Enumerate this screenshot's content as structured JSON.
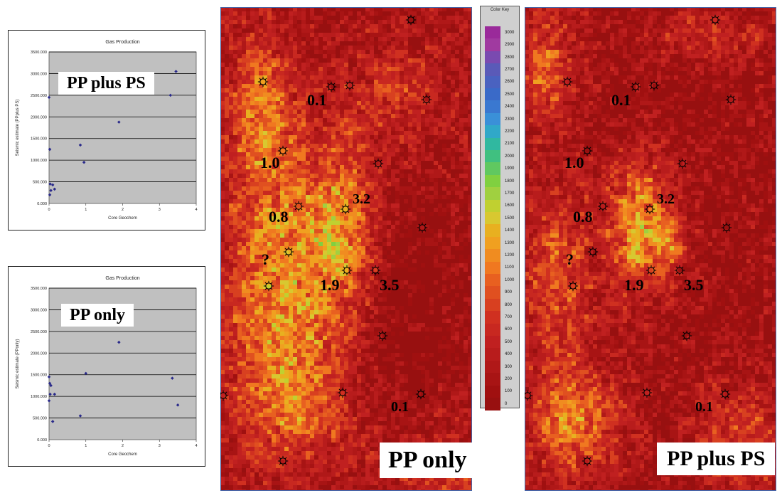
{
  "chart_data": [
    {
      "type": "scatter",
      "title": "Gas Production",
      "label": "PP plus PS",
      "xlabel": "Core Geochem",
      "ylabel": "Seismic estimate (PPplus PS)",
      "xlim": [
        0,
        4
      ],
      "ylim": [
        0,
        3500000
      ],
      "x_ticks": [
        "0",
        "1",
        "2",
        "3",
        "4"
      ],
      "y_ticks": [
        "0.000",
        "500.000",
        "1000.000",
        "1500.000",
        "2000.000",
        "2500.000",
        "3000.000",
        "3500.000"
      ],
      "grid": true,
      "points": [
        {
          "x": 0.0,
          "y": 2450000
        },
        {
          "x": 0.02,
          "y": 1250000
        },
        {
          "x": 0.03,
          "y": 450000
        },
        {
          "x": 0.05,
          "y": 300000
        },
        {
          "x": 0.02,
          "y": 200000
        },
        {
          "x": 0.1,
          "y": 430000
        },
        {
          "x": 0.15,
          "y": 330000
        },
        {
          "x": 0.85,
          "y": 1350000
        },
        {
          "x": 0.95,
          "y": 950000
        },
        {
          "x": 1.9,
          "y": 1880000
        },
        {
          "x": 3.3,
          "y": 2500000
        },
        {
          "x": 3.45,
          "y": 3050000
        }
      ],
      "point_color": "#2a2a8a"
    },
    {
      "type": "scatter",
      "title": "Gas Production",
      "label": "PP only",
      "xlabel": "Core Geochem",
      "ylabel": "Seismic estimate (PPonly)",
      "xlim": [
        0,
        4
      ],
      "ylim": [
        0,
        3500000
      ],
      "x_ticks": [
        "0",
        "1",
        "2",
        "3",
        "4"
      ],
      "y_ticks": [
        "0.000",
        "500.000",
        "1000.000",
        "1500.000",
        "2000.000",
        "2500.000",
        "3000.000",
        "3500.000"
      ],
      "grid": true,
      "points": [
        {
          "x": 0.0,
          "y": 1450000
        },
        {
          "x": 0.02,
          "y": 1300000
        },
        {
          "x": 0.05,
          "y": 1250000
        },
        {
          "x": 0.03,
          "y": 1050000
        },
        {
          "x": 0.0,
          "y": 900000
        },
        {
          "x": 0.15,
          "y": 1050000
        },
        {
          "x": 0.1,
          "y": 420000
        },
        {
          "x": 0.85,
          "y": 550000
        },
        {
          "x": 1.0,
          "y": 1530000
        },
        {
          "x": 1.9,
          "y": 2250000
        },
        {
          "x": 3.35,
          "y": 1420000
        },
        {
          "x": 3.5,
          "y": 800000
        }
      ],
      "point_color": "#2a2a8a"
    },
    {
      "type": "heatmap",
      "label": "PP only",
      "well_labels": [
        {
          "text": "0.1"
        },
        {
          "text": "1.0"
        },
        {
          "text": "3.2"
        },
        {
          "text": "0.8"
        },
        {
          "text": "?"
        },
        {
          "text": "1.9"
        },
        {
          "text": "3.5"
        },
        {
          "text": "0.1"
        }
      ]
    },
    {
      "type": "heatmap",
      "label": "PP plus PS",
      "well_labels": [
        {
          "text": "0.1"
        },
        {
          "text": "1.0"
        },
        {
          "text": "3.2"
        },
        {
          "text": "0.8"
        },
        {
          "text": "?"
        },
        {
          "text": "1.9"
        },
        {
          "text": "3.5"
        },
        {
          "text": "0.1"
        }
      ]
    }
  ],
  "color_key": {
    "title": "Color Key",
    "ticks": [
      "3000",
      "2900",
      "2800",
      "2700",
      "2600",
      "2500",
      "2400",
      "2300",
      "2200",
      "2100",
      "2000",
      "1900",
      "1800",
      "1700",
      "1600",
      "1500",
      "1400",
      "1300",
      "1200",
      "1100",
      "1000",
      "900",
      "800",
      "700",
      "600",
      "500",
      "400",
      "300",
      "200",
      "100",
      "0"
    ],
    "colors": [
      "#9a2a9a",
      "#a03aa0",
      "#7a4ab0",
      "#5a5ab8",
      "#4a62c0",
      "#3a6ac8",
      "#3a78d0",
      "#3a90d8",
      "#30a8c8",
      "#30b8a0",
      "#40c080",
      "#60c860",
      "#80d040",
      "#a0d040",
      "#c0d030",
      "#d8c830",
      "#e8b020",
      "#f0a020",
      "#f08c20",
      "#f07820",
      "#e86020",
      "#e05020",
      "#d84020",
      "#d03020",
      "#c82820",
      "#c02020",
      "#b81c1c",
      "#b01818",
      "#a81414",
      "#a01010",
      "#981010"
    ]
  }
}
